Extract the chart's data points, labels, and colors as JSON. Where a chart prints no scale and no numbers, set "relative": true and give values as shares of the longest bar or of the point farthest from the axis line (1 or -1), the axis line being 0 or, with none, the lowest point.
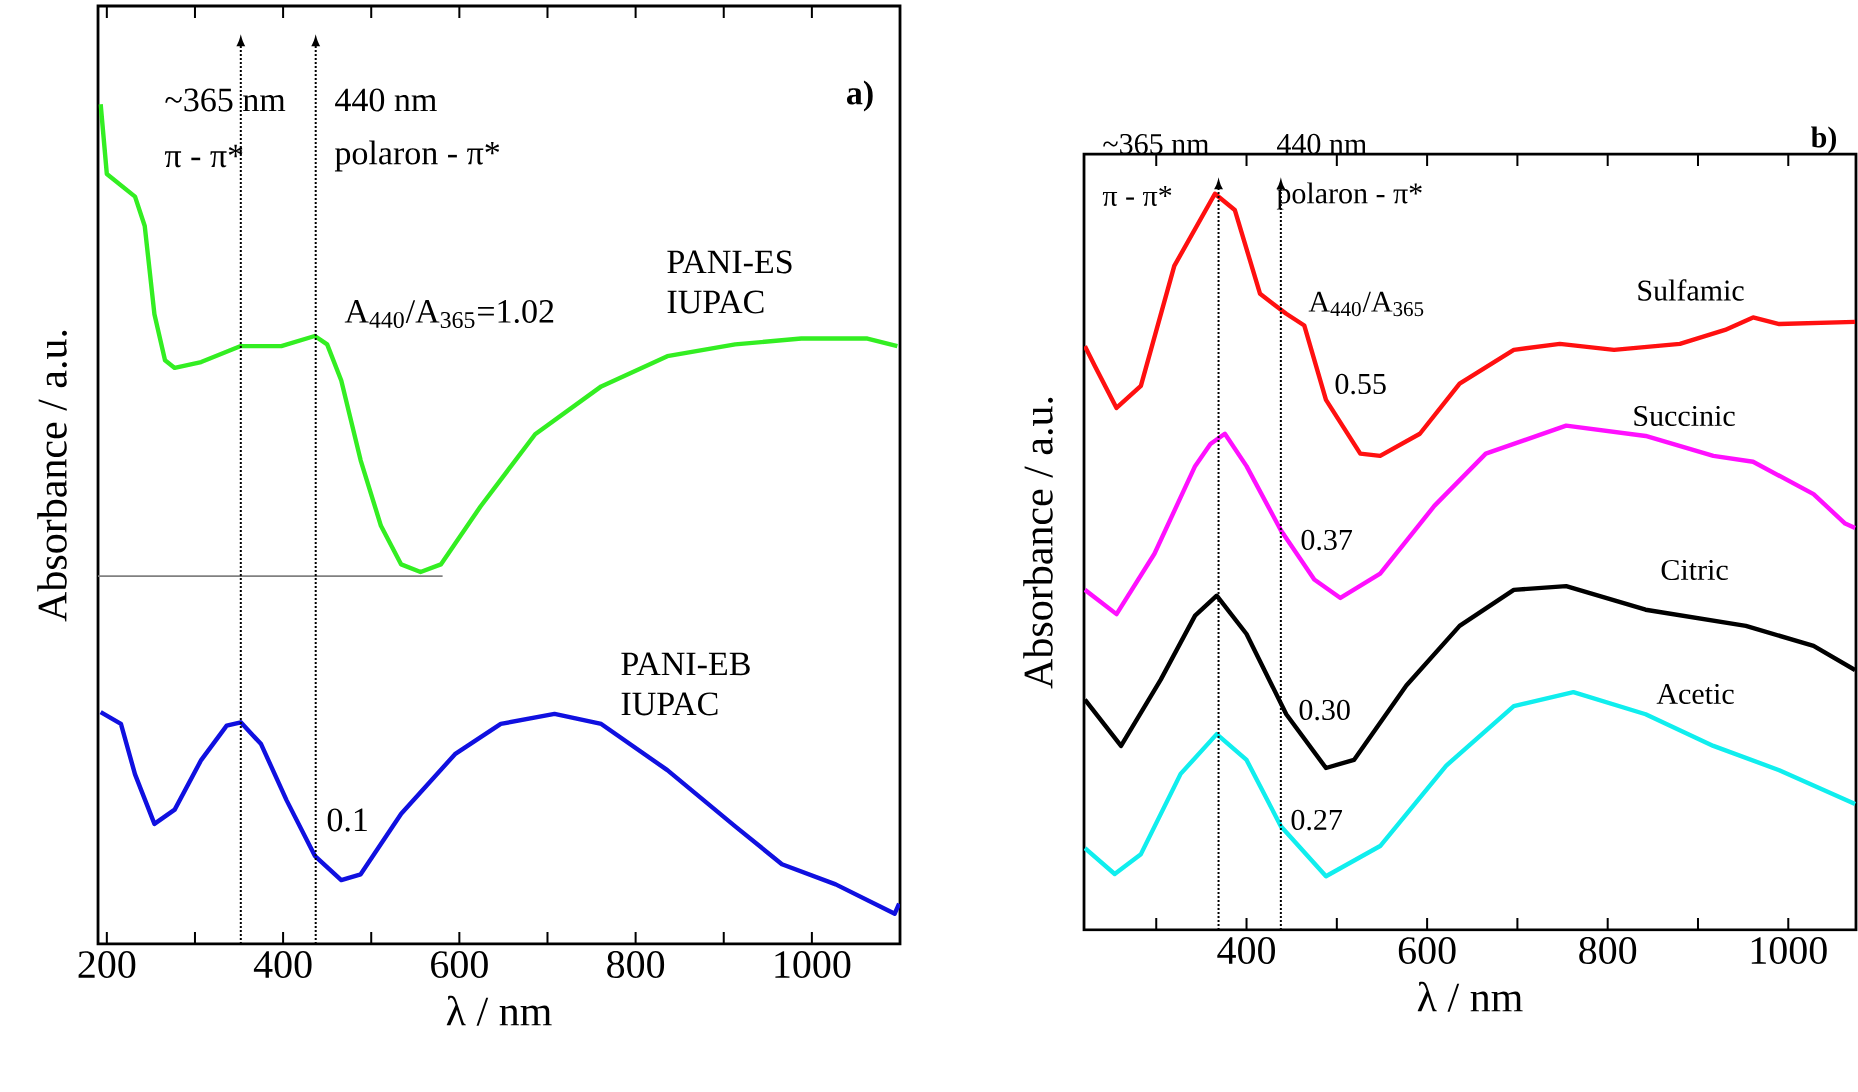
{
  "chart_data": [
    {
      "type": "line",
      "title": "a)",
      "xlabel": "λ / nm",
      "ylabel": "Absorbance / a.u.",
      "relative": true,
      "xlim": [
        190,
        1100
      ],
      "xticks": [
        200,
        {
          "value": 300,
          "label": null
        },
        400,
        {
          "value": 500,
          "label": null
        },
        600,
        {
          "value": 700,
          "label": null
        },
        800,
        {
          "value": 900,
          "label": null
        },
        1000
      ],
      "series": [
        {
          "name": "PANI-ES IUPAC",
          "color": "#33ee22",
          "x": [
            193,
            200,
            232,
            243,
            254,
            266,
            277,
            307,
            352,
            398,
            436,
            450,
            466,
            488,
            511,
            534,
            556,
            579,
            624,
            686,
            761,
            836,
            913,
            988,
            1063,
            1097
          ],
          "values": [
            1.0,
            0.917,
            0.89,
            0.855,
            0.75,
            0.695,
            0.686,
            0.693,
            0.712,
            0.712,
            0.724,
            0.714,
            0.671,
            0.576,
            0.498,
            0.452,
            0.443,
            0.452,
            0.521,
            0.607,
            0.664,
            0.7,
            0.714,
            0.721,
            0.721,
            0.712
          ]
        },
        {
          "name": "PANI-EB IUPAC",
          "color": "#1010e0",
          "x": [
            193,
            216,
            232,
            254,
            277,
            307,
            336,
            352,
            375,
            404,
            436,
            466,
            488,
            534,
            595,
            647,
            708,
            761,
            836,
            913,
            966,
            1027,
            1094,
            1099
          ],
          "values": [
            0.276,
            0.262,
            0.202,
            0.143,
            0.16,
            0.219,
            0.26,
            0.264,
            0.238,
            0.171,
            0.105,
            0.076,
            0.083,
            0.155,
            0.226,
            0.262,
            0.274,
            0.262,
            0.207,
            0.14,
            0.095,
            0.071,
            0.036,
            0.048
          ]
        },
        {
          "color": "#808080",
          "x": [
            190,
            581
          ],
          "values": [
            0.438,
            0.438
          ]
        }
      ],
      "ref_lines": [
        {
          "axis": "x",
          "value": 352,
          "line_style": "dotted"
        },
        {
          "axis": "x",
          "value": 437,
          "line_style": "dotted"
        }
      ],
      "annotations": [
        "~365 nm",
        "π - π*",
        "440 nm",
        "polaron - π*",
        "A$_{440}$/A$_{365}$=1.02",
        "0.1"
      ]
    },
    {
      "type": "line",
      "title": "b)",
      "xlabel": "λ / nm",
      "ylabel": "Absorbance / a.u.",
      "relative": true,
      "xlim": [
        220,
        1075
      ],
      "xticks": [
        {
          "value": 300,
          "label": null
        },
        400,
        {
          "value": 500,
          "label": null
        },
        600,
        {
          "value": 700,
          "label": null
        },
        800,
        {
          "value": 900,
          "label": null
        },
        1000
      ],
      "series": [
        {
          "name": "Sulfamic",
          "color": "#ff1010",
          "x": [
            221,
            232,
            256,
            283,
            320,
            365,
            387,
            415,
            444,
            464,
            488,
            526,
            548,
            592,
            636,
            696,
            747,
            807,
            880,
            930,
            961,
            990,
            1074
          ],
          "values": [
            0.793,
            0.766,
            0.709,
            0.739,
            0.902,
            1.0,
            0.978,
            0.864,
            0.837,
            0.821,
            0.72,
            0.647,
            0.644,
            0.674,
            0.742,
            0.788,
            0.796,
            0.788,
            0.796,
            0.815,
            0.832,
            0.823,
            0.826
          ]
        },
        {
          "name": "Succinic",
          "color": "#ff10ff",
          "x": [
            221,
            256,
            298,
            343,
            360,
            376,
            400,
            438,
            475,
            504,
            548,
            608,
            665,
            754,
            842,
            917,
            961,
            1028,
            1063,
            1074
          ],
          "values": [
            0.462,
            0.429,
            0.511,
            0.63,
            0.66,
            0.674,
            0.63,
            0.543,
            0.476,
            0.451,
            0.484,
            0.576,
            0.647,
            0.685,
            0.671,
            0.644,
            0.636,
            0.592,
            0.552,
            0.546
          ]
        },
        {
          "name": "Citric",
          "color": "#000000",
          "x": [
            221,
            261,
            305,
            343,
            367,
            400,
            444,
            488,
            519,
            577,
            636,
            696,
            754,
            842,
            953,
            1028,
            1074
          ],
          "values": [
            0.313,
            0.25,
            0.34,
            0.427,
            0.454,
            0.402,
            0.293,
            0.22,
            0.231,
            0.332,
            0.413,
            0.462,
            0.467,
            0.435,
            0.413,
            0.386,
            0.353
          ]
        },
        {
          "name": "Acetic",
          "color": "#10eeee",
          "x": [
            221,
            254,
            283,
            327,
            367,
            400,
            438,
            488,
            548,
            621,
            696,
            762,
            842,
            917,
            990,
            1074
          ],
          "values": [
            0.111,
            0.076,
            0.103,
            0.212,
            0.266,
            0.231,
            0.141,
            0.073,
            0.114,
            0.223,
            0.304,
            0.323,
            0.293,
            0.25,
            0.217,
            0.171
          ]
        }
      ],
      "ref_lines": [
        {
          "axis": "x",
          "value": 369,
          "line_style": "dotted"
        },
        {
          "axis": "x",
          "value": 438,
          "line_style": "dotted"
        }
      ],
      "annotations": [
        "~365 nm",
        "π - π*",
        "440 nm",
        "polaron - π*",
        "A$_{440}$/A$_{365}$",
        "0.55",
        "0.37",
        "0.30",
        "0.27"
      ]
    }
  ]
}
